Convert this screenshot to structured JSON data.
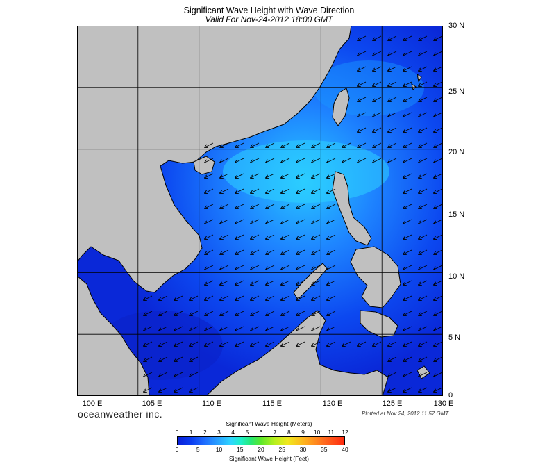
{
  "header": {
    "title": "Significant Wave Height with Wave Direction",
    "subtitle": "Valid For Nov-24-2012 18:00 GMT"
  },
  "map": {
    "region": "South China Sea",
    "lat_labels": [
      "30 N",
      "25 N",
      "20 N",
      "15 N",
      "10 N",
      "5 N",
      "0"
    ],
    "lon_labels": [
      "100 E",
      "105 E",
      "110 E",
      "115 E",
      "120 E",
      "125 E",
      "130 E"
    ],
    "lon_range": [
      100,
      130
    ],
    "lat_range": [
      0,
      30
    ],
    "land_color": "#c0c0c0",
    "grid": true,
    "arrow_direction": "northeasterly swell, arrows pointing southwest"
  },
  "footer": {
    "brand": "oceanweather inc.",
    "plotted": "Plotted at Nov 24, 2012 11:57 GMT"
  },
  "colorbar": {
    "title_meters": "Significant Wave Height (Meters)",
    "title_feet": "Significant Wave Height (Feet)",
    "meters_ticks": [
      "0",
      "1",
      "2",
      "3",
      "4",
      "5",
      "6",
      "7",
      "8",
      "9",
      "10",
      "11",
      "12"
    ],
    "feet_ticks": [
      "0",
      "5",
      "10",
      "15",
      "20",
      "25",
      "30",
      "35",
      "40"
    ]
  }
}
